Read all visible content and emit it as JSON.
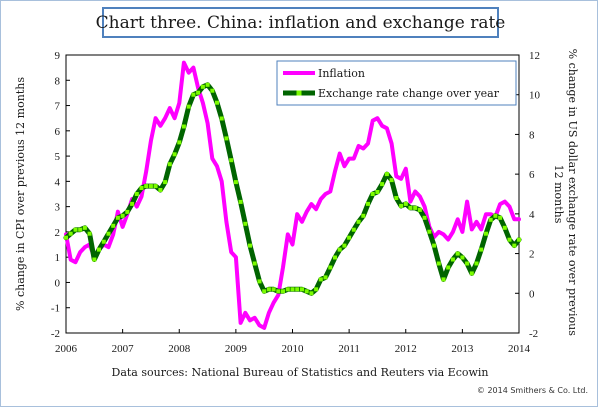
{
  "chart_data": {
    "type": "line",
    "title": "Chart three. China: inflation and exchange rate",
    "ylabel_left": "% change in CPI over previous 12 months",
    "ylabel_right": "% change in US dollar exchange rate over previous 12 months",
    "x_ticks": [
      "2006",
      "2007",
      "2008",
      "2009",
      "2010",
      "2011",
      "2012",
      "2013",
      "2014"
    ],
    "x_range": [
      2006,
      2014
    ],
    "ylim_left": [
      -2,
      9
    ],
    "ylim_right": [
      -2,
      12
    ],
    "y_ticks_left": [
      -2,
      -1,
      0,
      1,
      2,
      3,
      4,
      5,
      6,
      7,
      8,
      9
    ],
    "y_ticks_right": [
      -2,
      0,
      2,
      4,
      6,
      8,
      10,
      12
    ],
    "grid": false,
    "legend_position": "top-right",
    "source_text": "Data sources: National Bureau of Statistics and Reuters via Ecowin",
    "copyright_text": "© 2014 Smithers & Co. Ltd.",
    "series": [
      {
        "name": "Inflation",
        "axis": "left",
        "color": "#ff00ff",
        "x": [
          2006.0,
          2006.083,
          2006.167,
          2006.25,
          2006.333,
          2006.417,
          2006.5,
          2006.583,
          2006.667,
          2006.75,
          2006.833,
          2006.917,
          2007.0,
          2007.083,
          2007.167,
          2007.25,
          2007.333,
          2007.417,
          2007.5,
          2007.583,
          2007.667,
          2007.75,
          2007.833,
          2007.917,
          2008.0,
          2008.083,
          2008.167,
          2008.25,
          2008.333,
          2008.417,
          2008.5,
          2008.583,
          2008.667,
          2008.75,
          2008.833,
          2008.917,
          2009.0,
          2009.083,
          2009.167,
          2009.25,
          2009.333,
          2009.417,
          2009.5,
          2009.583,
          2009.667,
          2009.75,
          2009.833,
          2009.917,
          2010.0,
          2010.083,
          2010.167,
          2010.25,
          2010.333,
          2010.417,
          2010.5,
          2010.583,
          2010.667,
          2010.75,
          2010.833,
          2010.917,
          2011.0,
          2011.083,
          2011.167,
          2011.25,
          2011.333,
          2011.417,
          2011.5,
          2011.583,
          2011.667,
          2011.75,
          2011.833,
          2011.917,
          2012.0,
          2012.083,
          2012.167,
          2012.25,
          2012.333,
          2012.417,
          2012.5,
          2012.583,
          2012.667,
          2012.75,
          2012.833,
          2012.917,
          2013.0,
          2013.083,
          2013.167,
          2013.25,
          2013.333,
          2013.417,
          2013.5,
          2013.583,
          2013.667,
          2013.75,
          2013.833,
          2013.917,
          2014.0
        ],
        "values": [
          1.9,
          0.9,
          0.8,
          1.2,
          1.4,
          1.5,
          1.0,
          1.3,
          1.5,
          1.4,
          1.9,
          2.8,
          2.2,
          2.7,
          3.3,
          3.0,
          3.4,
          4.4,
          5.6,
          6.5,
          6.2,
          6.5,
          6.9,
          6.5,
          7.1,
          8.7,
          8.3,
          8.5,
          7.7,
          7.1,
          6.3,
          4.9,
          4.6,
          4.0,
          2.4,
          1.2,
          1.0,
          -1.6,
          -1.2,
          -1.5,
          -1.4,
          -1.7,
          -1.8,
          -1.2,
          -0.8,
          -0.5,
          0.6,
          1.9,
          1.5,
          2.7,
          2.4,
          2.8,
          3.1,
          2.9,
          3.3,
          3.5,
          3.6,
          4.4,
          5.1,
          4.6,
          4.9,
          4.9,
          5.4,
          5.3,
          5.5,
          6.4,
          6.5,
          6.2,
          6.1,
          5.5,
          4.2,
          4.1,
          4.5,
          3.2,
          3.6,
          3.4,
          3.0,
          2.2,
          1.8,
          2.0,
          1.9,
          1.7,
          2.0,
          2.5,
          2.0,
          3.2,
          2.1,
          2.4,
          2.1,
          2.7,
          2.7,
          2.6,
          3.1,
          3.2,
          3.0,
          2.5,
          2.5
        ]
      },
      {
        "name": "Exchange rate change over year",
        "axis": "right",
        "color": "#006400",
        "marker_color": "#7cfc00",
        "x": [
          2006.0,
          2006.083,
          2006.167,
          2006.25,
          2006.333,
          2006.417,
          2006.5,
          2006.583,
          2006.667,
          2006.75,
          2006.833,
          2006.917,
          2007.0,
          2007.083,
          2007.167,
          2007.25,
          2007.333,
          2007.417,
          2007.5,
          2007.583,
          2007.667,
          2007.75,
          2007.833,
          2007.917,
          2008.0,
          2008.083,
          2008.167,
          2008.25,
          2008.333,
          2008.417,
          2008.5,
          2008.583,
          2008.667,
          2008.75,
          2008.833,
          2008.917,
          2009.0,
          2009.083,
          2009.167,
          2009.25,
          2009.333,
          2009.417,
          2009.5,
          2009.583,
          2009.667,
          2009.75,
          2009.833,
          2009.917,
          2010.0,
          2010.083,
          2010.167,
          2010.25,
          2010.333,
          2010.417,
          2010.5,
          2010.583,
          2010.667,
          2010.75,
          2010.833,
          2010.917,
          2011.0,
          2011.083,
          2011.167,
          2011.25,
          2011.333,
          2011.417,
          2011.5,
          2011.583,
          2011.667,
          2011.75,
          2011.833,
          2011.917,
          2012.0,
          2012.083,
          2012.167,
          2012.25,
          2012.333,
          2012.417,
          2012.5,
          2012.583,
          2012.667,
          2012.75,
          2012.833,
          2012.917,
          2013.0,
          2013.083,
          2013.167,
          2013.25,
          2013.333,
          2013.417,
          2013.5,
          2013.583,
          2013.667,
          2013.75,
          2013.833,
          2013.917,
          2014.0
        ],
        "values": [
          2.8,
          3.0,
          3.2,
          3.2,
          3.3,
          3.0,
          1.7,
          2.2,
          2.6,
          3.0,
          3.4,
          3.8,
          3.9,
          4.1,
          4.5,
          5.0,
          5.3,
          5.4,
          5.4,
          5.4,
          5.2,
          5.6,
          6.5,
          7.0,
          7.6,
          8.4,
          9.4,
          10.0,
          10.1,
          10.4,
          10.5,
          10.2,
          9.6,
          8.8,
          7.8,
          6.7,
          5.6,
          4.6,
          3.5,
          2.4,
          1.5,
          0.6,
          0.1,
          0.2,
          0.2,
          0.1,
          0.1,
          0.2,
          0.2,
          0.2,
          0.2,
          0.1,
          0.0,
          0.2,
          0.7,
          0.8,
          1.3,
          1.8,
          2.2,
          2.4,
          2.8,
          3.2,
          3.6,
          3.9,
          4.5,
          5.0,
          5.1,
          5.5,
          6.0,
          5.7,
          4.8,
          4.4,
          4.5,
          4.3,
          4.3,
          4.2,
          3.8,
          3.1,
          2.4,
          1.5,
          0.7,
          1.3,
          1.7,
          2.0,
          1.8,
          1.5,
          1.0,
          1.5,
          2.2,
          3.0,
          3.7,
          3.9,
          3.8,
          3.3,
          2.7,
          2.4,
          2.7
        ]
      }
    ]
  }
}
